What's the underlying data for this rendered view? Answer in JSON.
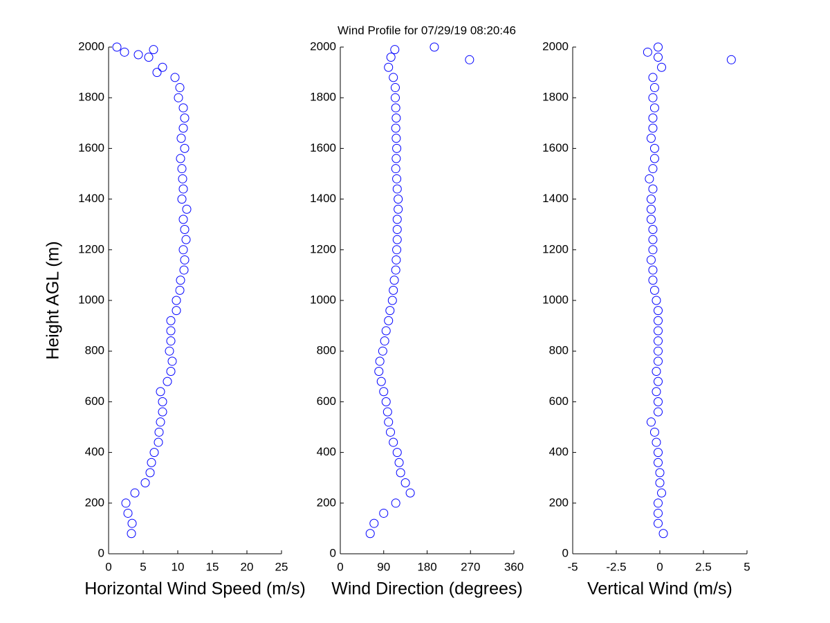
{
  "chart_data": [
    {
      "type": "scatter",
      "title": "Wind Profile for  07/29/19 08:20:46",
      "xlabel": "Horizontal Wind Speed (m/s)",
      "ylabel": "Height AGL (m)",
      "color": "#0000ff",
      "xlim": [
        0,
        25
      ],
      "xticks": [
        0,
        5,
        10,
        15,
        20,
        25
      ],
      "ylim": [
        0,
        2000
      ],
      "yticks": [
        0,
        200,
        400,
        600,
        800,
        1000,
        1200,
        1400,
        1600,
        1800,
        2000
      ],
      "x": [
        3.3,
        3.4,
        2.8,
        2.5,
        3.8,
        5.3,
        6.0,
        6.2,
        6.6,
        7.2,
        7.3,
        7.5,
        7.8,
        7.8,
        7.5,
        8.5,
        9.0,
        9.2,
        8.8,
        9.0,
        9.0,
        9.0,
        9.8,
        9.8,
        10.3,
        10.4,
        10.9,
        11.0,
        10.8,
        11.2,
        11.0,
        10.8,
        11.3,
        10.6,
        10.8,
        10.7,
        10.6,
        10.4,
        11.0,
        10.5,
        10.8,
        11.0,
        10.8,
        10.1,
        10.3,
        9.6,
        7.8,
        5.8,
        1.2,
        7.0,
        4.3,
        2.3,
        6.5
      ],
      "y": [
        80,
        120,
        160,
        200,
        240,
        280,
        320,
        360,
        400,
        440,
        480,
        520,
        560,
        600,
        640,
        680,
        720,
        760,
        800,
        840,
        880,
        920,
        960,
        1000,
        1040,
        1080,
        1120,
        1160,
        1200,
        1240,
        1280,
        1320,
        1360,
        1400,
        1440,
        1480,
        1520,
        1560,
        1600,
        1640,
        1680,
        1720,
        1760,
        1800,
        1840,
        1880,
        1920,
        1960,
        2000,
        1900,
        1970,
        1980,
        1990
      ]
    },
    {
      "type": "scatter",
      "xlabel": "Wind Direction (degrees)",
      "color": "#0000ff",
      "xlim": [
        0,
        360
      ],
      "xticks": [
        0,
        90,
        180,
        270,
        360
      ],
      "ylim": [
        0,
        2000
      ],
      "yticks": [
        0,
        200,
        400,
        600,
        800,
        1000,
        1200,
        1400,
        1600,
        1800,
        2000
      ],
      "x": [
        62,
        70,
        90,
        115,
        145,
        135,
        125,
        122,
        118,
        110,
        104,
        100,
        98,
        95,
        90,
        85,
        80,
        82,
        88,
        92,
        95,
        100,
        103,
        108,
        110,
        112,
        115,
        116,
        117,
        118,
        118,
        118,
        120,
        120,
        118,
        117,
        115,
        116,
        117,
        116,
        115,
        116,
        115,
        114,
        114,
        110,
        100,
        105,
        195,
        268,
        113
      ],
      "y": [
        80,
        120,
        160,
        200,
        240,
        280,
        320,
        360,
        400,
        440,
        480,
        520,
        560,
        600,
        640,
        680,
        720,
        760,
        800,
        840,
        880,
        920,
        960,
        1000,
        1040,
        1080,
        1120,
        1160,
        1200,
        1240,
        1280,
        1320,
        1360,
        1400,
        1440,
        1480,
        1520,
        1560,
        1600,
        1640,
        1680,
        1720,
        1760,
        1800,
        1840,
        1880,
        1920,
        1960,
        2000,
        1950,
        1990
      ]
    },
    {
      "type": "scatter",
      "xlabel": "Vertical Wind (m/s)",
      "color": "#0000ff",
      "xlim": [
        -5,
        5
      ],
      "xticks": [
        -5,
        -2.5,
        0,
        2.5,
        5
      ],
      "ylim": [
        0,
        2000
      ],
      "yticks": [
        0,
        200,
        400,
        600,
        800,
        1000,
        1200,
        1400,
        1600,
        1800,
        2000
      ],
      "x": [
        0.2,
        -0.1,
        -0.1,
        -0.1,
        0.1,
        0.0,
        0.0,
        -0.1,
        -0.1,
        -0.2,
        -0.3,
        -0.5,
        -0.1,
        -0.1,
        -0.2,
        -0.1,
        -0.2,
        -0.1,
        -0.1,
        -0.1,
        -0.1,
        -0.1,
        -0.1,
        -0.2,
        -0.3,
        -0.4,
        -0.4,
        -0.5,
        -0.4,
        -0.4,
        -0.4,
        -0.5,
        -0.5,
        -0.5,
        -0.4,
        -0.6,
        -0.4,
        -0.3,
        -0.3,
        -0.5,
        -0.4,
        -0.4,
        -0.3,
        -0.4,
        -0.3,
        -0.4,
        0.1,
        -0.1,
        -0.1,
        4.1,
        -0.7
      ],
      "y": [
        80,
        120,
        160,
        200,
        240,
        280,
        320,
        360,
        400,
        440,
        480,
        520,
        560,
        600,
        640,
        680,
        720,
        760,
        800,
        840,
        880,
        920,
        960,
        1000,
        1040,
        1080,
        1120,
        1160,
        1200,
        1240,
        1280,
        1320,
        1360,
        1400,
        1440,
        1480,
        1520,
        1560,
        1600,
        1640,
        1680,
        1720,
        1760,
        1800,
        1840,
        1880,
        1920,
        1960,
        2000,
        1950,
        1980
      ]
    }
  ]
}
